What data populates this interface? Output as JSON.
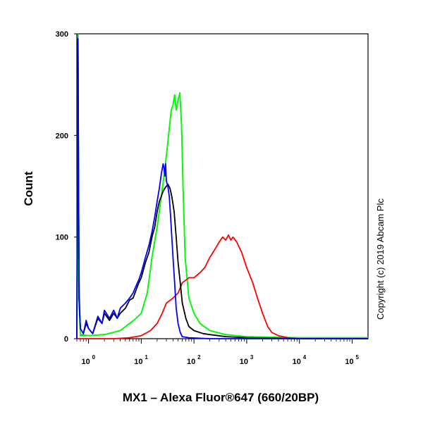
{
  "chart_data": {
    "type": "line",
    "subtype": "flow-cytometry-histogram",
    "xlabel": "MX1 – Alexa Fluor®647 (660/20BP)",
    "ylabel": "Count",
    "x_scale": "log",
    "xlim": [
      0.6,
      200000
    ],
    "ylim": [
      0,
      300
    ],
    "x_ticks": [
      {
        "value": 1,
        "base": "10",
        "exp": "0"
      },
      {
        "value": 10,
        "base": "10",
        "exp": "1"
      },
      {
        "value": 100,
        "base": "10",
        "exp": "2"
      },
      {
        "value": 1000,
        "base": "10",
        "exp": "3"
      },
      {
        "value": 10000,
        "base": "10",
        "exp": "4"
      },
      {
        "value": 100000,
        "base": "10",
        "exp": "5"
      }
    ],
    "y_ticks": [
      "0",
      "100",
      "200",
      "300"
    ],
    "y_tick_values": [
      0,
      100,
      200,
      300
    ],
    "grid": false,
    "legend": "none",
    "annotations": [
      {
        "text": "Copyright (c) 2019 Abcam Plc",
        "placement": "right-vertical"
      }
    ],
    "series": [
      {
        "color": "#22b14c",
        "points": [
          [
            0.6,
            5
          ],
          [
            0.63,
            300
          ],
          [
            0.66,
            60
          ],
          [
            0.7,
            4
          ],
          [
            1,
            3
          ],
          [
            2,
            4
          ],
          [
            4,
            8
          ],
          [
            6,
            15
          ],
          [
            8,
            20
          ],
          [
            10,
            25
          ],
          [
            13,
            45
          ],
          [
            16,
            80
          ],
          [
            20,
            110
          ],
          [
            24,
            140
          ],
          [
            27,
            160
          ],
          [
            30,
            180
          ],
          [
            33,
            200
          ],
          [
            37,
            225
          ],
          [
            40,
            230
          ],
          [
            43,
            240
          ],
          [
            46,
            225
          ],
          [
            50,
            235
          ],
          [
            54,
            242
          ],
          [
            58,
            210
          ],
          [
            62,
            150
          ],
          [
            68,
            80
          ],
          [
            80,
            40
          ],
          [
            100,
            25
          ],
          [
            130,
            15
          ],
          [
            200,
            8
          ],
          [
            400,
            4
          ],
          [
            1000,
            2
          ],
          [
            10000,
            1
          ],
          [
            200000,
            1
          ]
        ]
      },
      {
        "color": "#00ff00",
        "points": [
          [
            0.6,
            5
          ],
          [
            0.63,
            120
          ],
          [
            0.66,
            40
          ],
          [
            0.7,
            3
          ],
          [
            1,
            3
          ],
          [
            2,
            4
          ],
          [
            4,
            8
          ],
          [
            6,
            15
          ],
          [
            8,
            20
          ],
          [
            10,
            25
          ],
          [
            13,
            45
          ],
          [
            16,
            80
          ],
          [
            20,
            110
          ],
          [
            24,
            140
          ],
          [
            27,
            160
          ],
          [
            30,
            180
          ],
          [
            33,
            200
          ],
          [
            37,
            225
          ],
          [
            40,
            230
          ],
          [
            43,
            240
          ],
          [
            46,
            225
          ],
          [
            50,
            235
          ],
          [
            54,
            242
          ],
          [
            58,
            210
          ],
          [
            62,
            150
          ],
          [
            68,
            80
          ],
          [
            80,
            40
          ],
          [
            100,
            25
          ],
          [
            130,
            15
          ],
          [
            200,
            8
          ],
          [
            400,
            4
          ],
          [
            1000,
            2
          ],
          [
            10000,
            1
          ],
          [
            200000,
            1
          ]
        ]
      },
      {
        "color": "#ff0000",
        "points": [
          [
            0.6,
            0
          ],
          [
            3,
            0
          ],
          [
            6,
            1
          ],
          [
            10,
            3
          ],
          [
            15,
            8
          ],
          [
            20,
            15
          ],
          [
            25,
            25
          ],
          [
            30,
            35
          ],
          [
            40,
            40
          ],
          [
            50,
            45
          ],
          [
            60,
            55
          ],
          [
            80,
            60
          ],
          [
            100,
            60
          ],
          [
            130,
            65
          ],
          [
            160,
            70
          ],
          [
            200,
            80
          ],
          [
            250,
            88
          ],
          [
            300,
            95
          ],
          [
            350,
            100
          ],
          [
            400,
            97
          ],
          [
            450,
            102
          ],
          [
            500,
            97
          ],
          [
            550,
            100
          ],
          [
            650,
            95
          ],
          [
            800,
            85
          ],
          [
            1000,
            70
          ],
          [
            1300,
            55
          ],
          [
            1600,
            40
          ],
          [
            2000,
            25
          ],
          [
            2500,
            12
          ],
          [
            3000,
            6
          ],
          [
            4000,
            3
          ],
          [
            6000,
            1
          ],
          [
            10000,
            0
          ],
          [
            200000,
            0
          ]
        ]
      },
      {
        "color": "#000000",
        "points": [
          [
            0.6,
            0
          ],
          [
            0.63,
            295
          ],
          [
            0.66,
            40
          ],
          [
            0.7,
            10
          ],
          [
            0.8,
            5
          ],
          [
            0.9,
            15
          ],
          [
            1,
            10
          ],
          [
            1.2,
            5
          ],
          [
            1.5,
            20
          ],
          [
            1.8,
            15
          ],
          [
            2,
            25
          ],
          [
            2.5,
            18
          ],
          [
            3,
            25
          ],
          [
            3.5,
            20
          ],
          [
            4,
            25
          ],
          [
            5,
            30
          ],
          [
            6,
            38
          ],
          [
            7,
            40
          ],
          [
            8,
            48
          ],
          [
            9,
            55
          ],
          [
            10,
            60
          ],
          [
            12,
            75
          ],
          [
            14,
            85
          ],
          [
            16,
            100
          ],
          [
            18,
            110
          ],
          [
            20,
            125
          ],
          [
            22,
            135
          ],
          [
            24,
            140
          ],
          [
            26,
            145
          ],
          [
            28,
            148
          ],
          [
            30,
            150
          ],
          [
            32,
            152
          ],
          [
            35,
            148
          ],
          [
            38,
            140
          ],
          [
            42,
            125
          ],
          [
            46,
            100
          ],
          [
            50,
            75
          ],
          [
            55,
            55
          ],
          [
            60,
            35
          ],
          [
            70,
            20
          ],
          [
            80,
            12
          ],
          [
            100,
            8
          ],
          [
            150,
            5
          ],
          [
            200,
            4
          ],
          [
            400,
            2
          ],
          [
            1000,
            1
          ],
          [
            10000,
            0
          ],
          [
            200000,
            0
          ]
        ]
      },
      {
        "color": "#0000ff",
        "points": [
          [
            0.6,
            0
          ],
          [
            0.63,
            295
          ],
          [
            0.66,
            40
          ],
          [
            0.7,
            10
          ],
          [
            0.8,
            5
          ],
          [
            0.9,
            18
          ],
          [
            1,
            10
          ],
          [
            1.2,
            5
          ],
          [
            1.5,
            22
          ],
          [
            1.8,
            15
          ],
          [
            2,
            28
          ],
          [
            2.5,
            20
          ],
          [
            3,
            28
          ],
          [
            3.5,
            20
          ],
          [
            4,
            30
          ],
          [
            5,
            35
          ],
          [
            6,
            40
          ],
          [
            7,
            45
          ],
          [
            8,
            52
          ],
          [
            9,
            58
          ],
          [
            10,
            65
          ],
          [
            12,
            80
          ],
          [
            14,
            92
          ],
          [
            16,
            105
          ],
          [
            18,
            120
          ],
          [
            20,
            135
          ],
          [
            22,
            148
          ],
          [
            24,
            162
          ],
          [
            26,
            172
          ],
          [
            27,
            168
          ],
          [
            28,
            160
          ],
          [
            29,
            172
          ],
          [
            30,
            155
          ],
          [
            32,
            150
          ],
          [
            34,
            140
          ],
          [
            36,
            120
          ],
          [
            38,
            100
          ],
          [
            40,
            80
          ],
          [
            43,
            55
          ],
          [
            46,
            30
          ],
          [
            50,
            15
          ],
          [
            55,
            6
          ],
          [
            60,
            2
          ],
          [
            80,
            1
          ],
          [
            200,
            0
          ],
          [
            200000,
            0
          ]
        ]
      }
    ]
  }
}
